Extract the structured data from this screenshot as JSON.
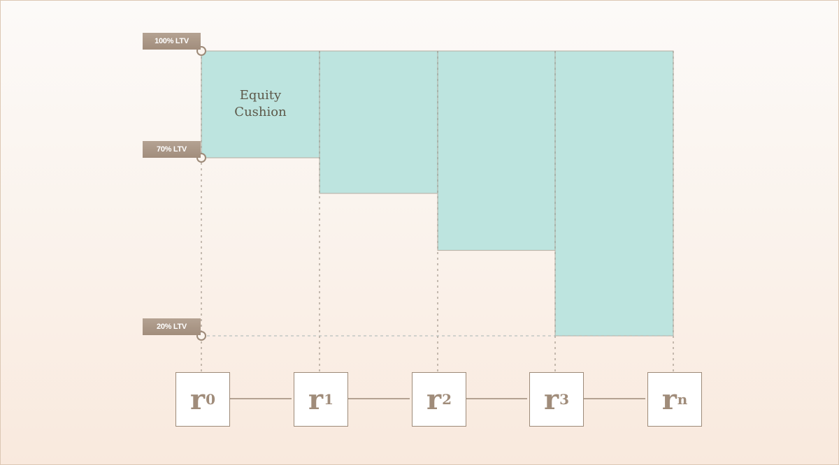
{
  "levels": {
    "ltv100": "100% LTV",
    "ltv70": "70% LTV",
    "ltv20": "20% LTV"
  },
  "cushion_label": [
    "Equity",
    "Cushion"
  ],
  "periods": [
    {
      "base": "r",
      "sub": "0"
    },
    {
      "base": "r",
      "sub": "1"
    },
    {
      "base": "r",
      "sub": "2"
    },
    {
      "base": "r",
      "sub": "3"
    },
    {
      "base": "r",
      "sub": "n"
    }
  ],
  "floor_ltv_percent": [
    70,
    60,
    44,
    20
  ],
  "top_ltv_percent": 100,
  "colors": {
    "cushion": "#bde4df",
    "label": "#a89483",
    "line": "#9d8a78"
  }
}
